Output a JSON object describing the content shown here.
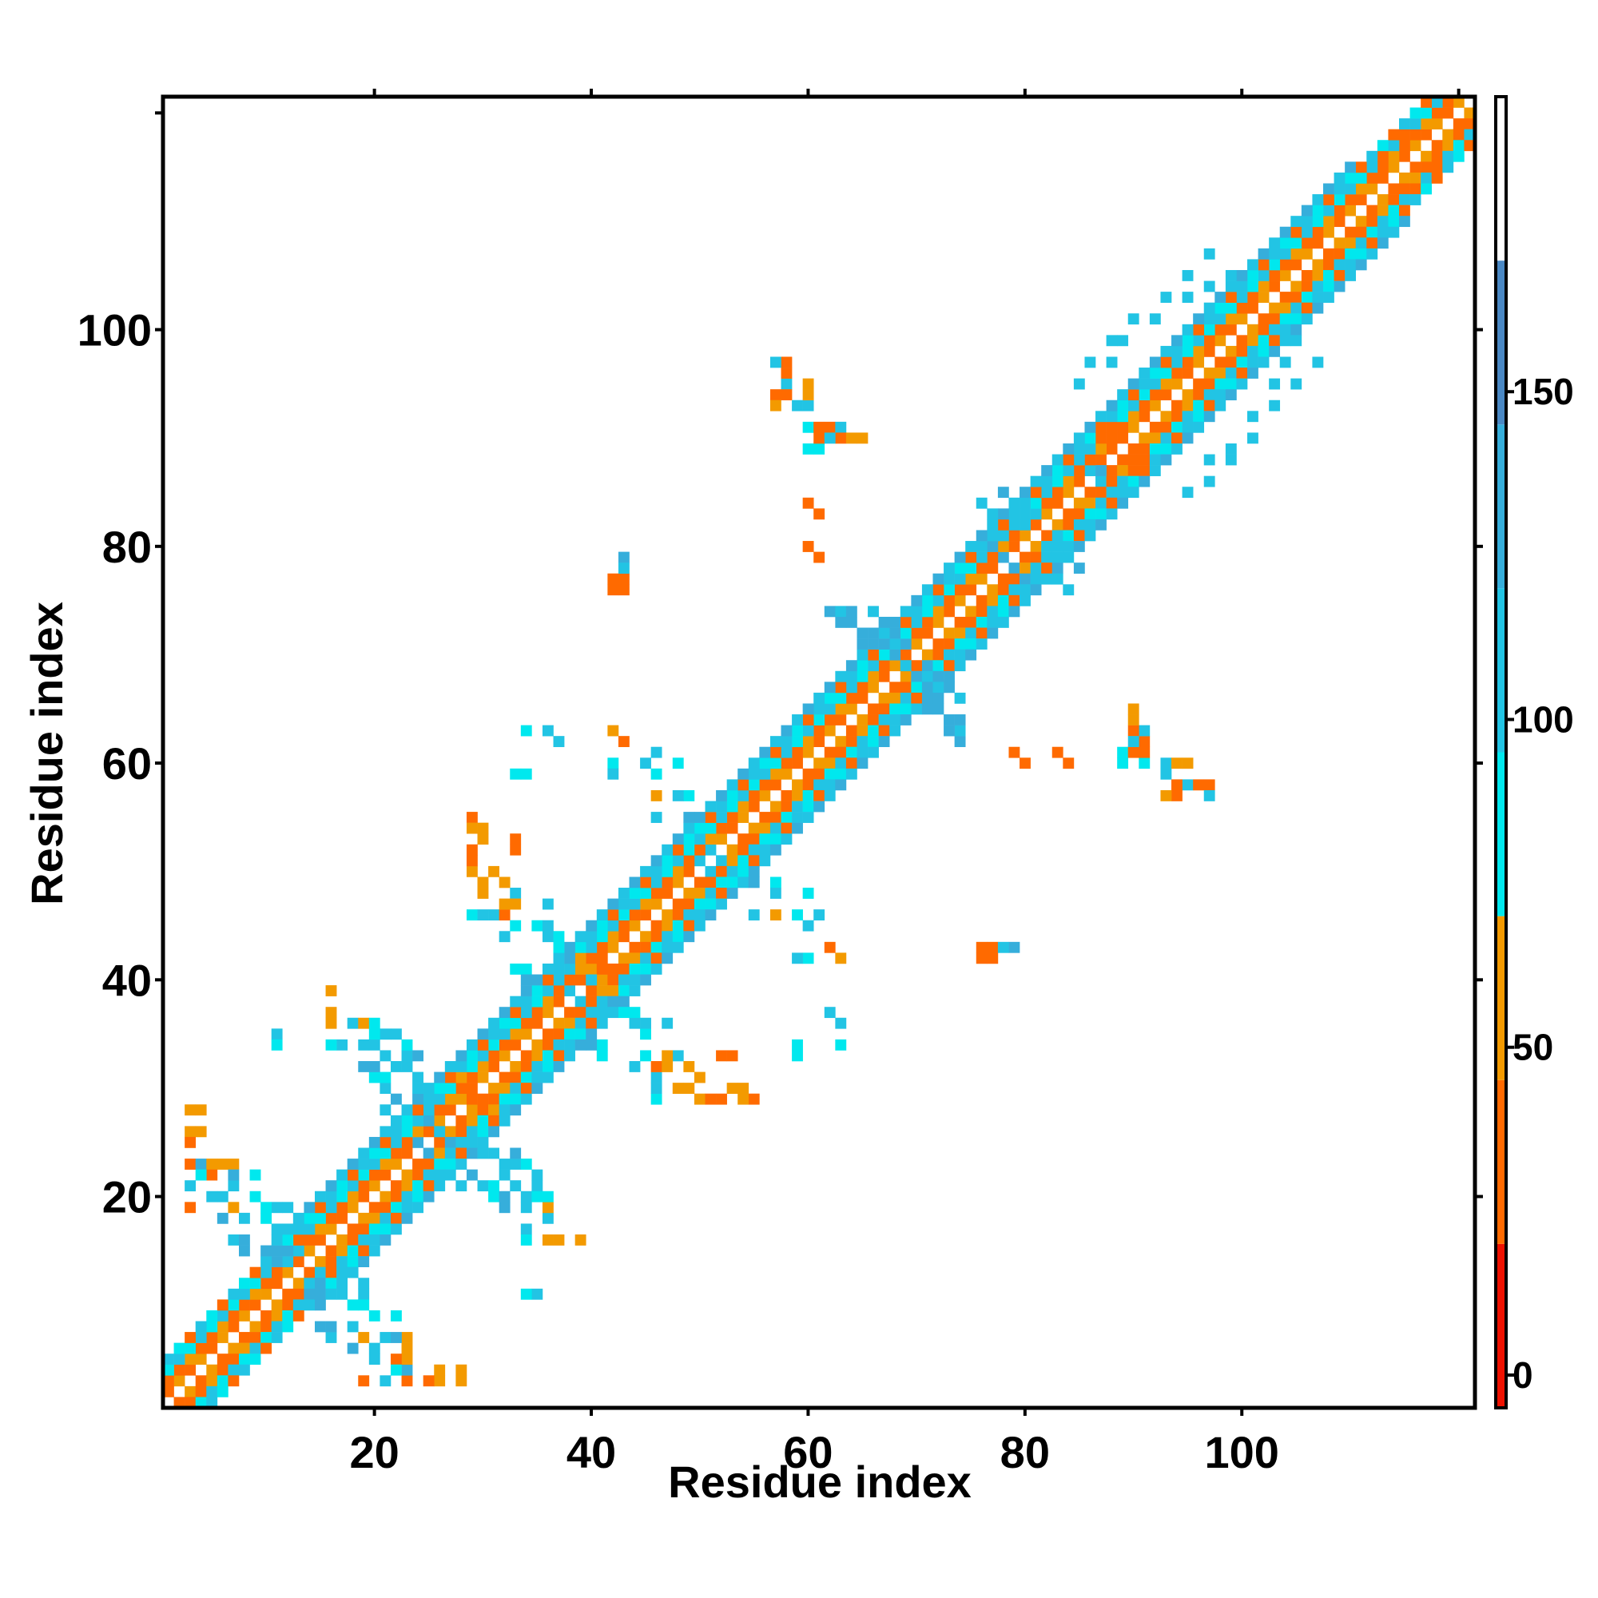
{
  "chart_data": {
    "type": "heatmap",
    "title": "",
    "xlabel": "Residue index",
    "ylabel": "Residue index",
    "xlim": [
      0.5,
      121.5
    ],
    "ylim": [
      0.5,
      121.5
    ],
    "x_ticks": [
      20,
      40,
      60,
      80,
      100
    ],
    "y_ticks": [
      20,
      40,
      60,
      80,
      100
    ],
    "grid": false,
    "colorbar": {
      "range": [
        -5,
        195
      ],
      "ticks": [
        0,
        50,
        100,
        150
      ],
      "bands": [
        {
          "from": -5,
          "to": 20,
          "color": "#ee1100"
        },
        {
          "from": 20,
          "to": 45,
          "color": "#ff6a00"
        },
        {
          "from": 45,
          "to": 70,
          "color": "#f39a00"
        },
        {
          "from": 70,
          "to": 95,
          "color": "#00e8ee"
        },
        {
          "from": 95,
          "to": 120,
          "color": "#22c4e4"
        },
        {
          "from": 120,
          "to": 145,
          "color": "#36aedb"
        },
        {
          "from": 145,
          "to": 170,
          "color": "#4a88c4"
        },
        {
          "from": 170,
          "to": 195,
          "color": "#ffffff"
        }
      ]
    },
    "n_residues": 121,
    "diagonal_bands": [
      {
        "from": 1,
        "to": 121,
        "offset": 1,
        "values": [
          30,
          55
        ]
      },
      {
        "from": 1,
        "to": 120,
        "offset": 2,
        "values": [
          30,
          20,
          55
        ]
      },
      {
        "from": 1,
        "to": 119,
        "offset": 3,
        "values": [
          85,
          100
        ]
      },
      {
        "from": 1,
        "to": 118,
        "offset": 4,
        "values": [
          85,
          30,
          110
        ]
      },
      {
        "from": 10,
        "to": 110,
        "offset": 5,
        "values": [
          110,
          140
        ]
      }
    ],
    "points": [
      [
        3,
        28,
        55
      ],
      [
        3,
        26,
        55
      ],
      [
        4,
        26,
        55
      ],
      [
        3,
        23,
        110
      ],
      [
        4,
        23,
        140
      ],
      [
        5,
        23,
        110
      ],
      [
        6,
        23,
        55
      ],
      [
        7,
        23,
        55
      ],
      [
        5,
        22,
        30
      ],
      [
        3,
        21,
        110
      ],
      [
        7,
        21,
        140
      ],
      [
        9,
        20,
        110
      ],
      [
        3,
        19,
        30
      ],
      [
        6,
        18,
        140
      ],
      [
        7,
        19,
        85
      ],
      [
        11,
        19,
        110
      ],
      [
        12,
        19,
        110
      ],
      [
        8,
        18,
        110
      ],
      [
        10,
        18,
        140
      ],
      [
        11,
        17,
        140
      ],
      [
        12,
        17,
        110
      ],
      [
        7,
        16,
        110
      ],
      [
        8,
        16,
        140
      ],
      [
        11,
        16,
        110
      ],
      [
        12,
        16,
        85
      ],
      [
        13,
        16,
        20
      ],
      [
        11,
        15,
        140
      ],
      [
        12,
        15,
        110
      ],
      [
        13,
        15,
        110
      ],
      [
        14,
        12,
        110
      ],
      [
        15,
        12,
        140
      ],
      [
        16,
        11,
        110
      ],
      [
        14,
        11,
        140
      ],
      [
        17,
        11,
        110
      ],
      [
        18,
        10,
        85
      ],
      [
        19,
        10,
        85
      ],
      [
        20,
        9,
        85
      ],
      [
        22,
        9,
        85
      ],
      [
        15,
        8,
        140
      ],
      [
        18,
        8,
        110
      ],
      [
        19,
        7,
        55
      ],
      [
        20,
        6,
        110
      ],
      [
        21,
        7,
        110
      ],
      [
        22,
        7,
        140
      ],
      [
        23,
        7,
        55
      ],
      [
        20,
        5,
        110
      ],
      [
        23,
        5,
        55
      ],
      [
        22,
        4,
        85
      ],
      [
        19,
        3,
        30
      ],
      [
        23,
        3,
        30
      ],
      [
        25,
        3,
        30
      ],
      [
        26,
        3,
        55
      ],
      [
        28,
        4,
        55
      ],
      [
        16,
        39,
        55
      ],
      [
        11,
        35,
        110
      ],
      [
        16,
        36,
        55
      ],
      [
        18,
        36,
        110
      ],
      [
        19,
        36,
        55
      ],
      [
        20,
        36,
        85
      ],
      [
        22,
        35,
        110
      ],
      [
        19,
        34,
        85
      ],
      [
        20,
        34,
        110
      ],
      [
        23,
        33,
        110
      ],
      [
        24,
        33,
        140
      ],
      [
        19,
        32,
        140
      ],
      [
        22,
        32,
        110
      ],
      [
        24,
        31,
        110
      ],
      [
        20,
        31,
        85
      ],
      [
        21,
        28,
        110
      ],
      [
        22,
        27,
        110
      ],
      [
        25,
        27,
        140
      ],
      [
        26,
        26,
        110
      ],
      [
        27,
        25,
        140
      ],
      [
        28,
        25,
        110
      ],
      [
        25,
        24,
        140
      ],
      [
        29,
        24,
        140
      ],
      [
        30,
        24,
        110
      ],
      [
        31,
        24,
        110
      ],
      [
        32,
        23,
        110
      ],
      [
        34,
        23,
        85
      ],
      [
        29,
        22,
        140
      ],
      [
        30,
        21,
        110
      ],
      [
        31,
        21,
        85
      ],
      [
        33,
        21,
        110
      ],
      [
        35,
        21,
        110
      ],
      [
        32,
        20,
        140
      ],
      [
        34,
        19,
        110
      ],
      [
        35,
        20,
        85
      ],
      [
        34,
        17,
        110
      ],
      [
        34,
        16,
        85
      ],
      [
        37,
        16,
        55
      ],
      [
        34,
        11,
        85
      ],
      [
        28,
        30,
        20
      ],
      [
        29,
        29,
        20
      ],
      [
        28,
        31,
        55
      ],
      [
        29,
        55,
        55
      ],
      [
        29,
        54,
        55
      ],
      [
        30,
        53,
        55
      ],
      [
        33,
        53,
        30
      ],
      [
        29,
        50,
        55
      ],
      [
        30,
        49,
        110
      ],
      [
        31,
        50,
        55
      ],
      [
        32,
        49,
        55
      ],
      [
        33,
        48,
        110
      ],
      [
        29,
        46,
        85
      ],
      [
        31,
        46,
        110
      ],
      [
        32,
        46,
        85
      ],
      [
        33,
        45,
        110
      ],
      [
        35,
        45,
        140
      ],
      [
        36,
        44,
        110
      ],
      [
        37,
        43,
        85
      ],
      [
        34,
        41,
        85
      ],
      [
        35,
        40,
        140
      ],
      [
        36,
        41,
        110
      ],
      [
        38,
        39,
        140
      ],
      [
        39,
        38,
        110
      ],
      [
        40,
        37,
        110
      ],
      [
        41,
        36,
        110
      ],
      [
        42,
        38,
        140
      ],
      [
        43,
        39,
        85
      ],
      [
        44,
        37,
        85
      ],
      [
        45,
        36,
        110
      ],
      [
        47,
        36,
        110
      ],
      [
        45,
        35,
        85
      ],
      [
        40,
        34,
        140
      ],
      [
        41,
        33,
        85
      ],
      [
        45,
        33,
        85
      ],
      [
        46,
        32,
        30
      ],
      [
        47,
        33,
        55
      ],
      [
        47,
        32,
        55
      ],
      [
        49,
        32,
        55
      ],
      [
        44,
        32,
        110
      ],
      [
        46,
        30,
        110
      ],
      [
        48,
        30,
        55
      ],
      [
        49,
        30,
        55
      ],
      [
        51,
        29,
        30
      ],
      [
        52,
        29,
        30
      ],
      [
        53,
        30,
        55
      ],
      [
        54,
        30,
        55
      ],
      [
        55,
        29,
        30
      ],
      [
        52,
        33,
        30
      ],
      [
        40,
        42,
        20
      ],
      [
        41,
        41,
        20
      ],
      [
        42,
        41,
        20
      ],
      [
        39,
        42,
        55
      ],
      [
        40,
        40,
        110
      ],
      [
        34,
        63,
        85
      ],
      [
        36,
        63,
        110
      ],
      [
        42,
        63,
        55
      ],
      [
        42,
        60,
        85
      ],
      [
        45,
        60,
        85
      ],
      [
        46,
        61,
        110
      ],
      [
        48,
        60,
        110
      ],
      [
        46,
        57,
        55
      ],
      [
        49,
        57,
        85
      ],
      [
        49,
        55,
        110
      ],
      [
        51,
        52,
        110
      ],
      [
        51,
        50,
        110
      ],
      [
        53,
        49,
        85
      ],
      [
        55,
        49,
        140
      ],
      [
        57,
        48,
        110
      ],
      [
        60,
        48,
        85
      ],
      [
        55,
        46,
        110
      ],
      [
        59,
        46,
        85
      ],
      [
        60,
        45,
        110
      ],
      [
        62,
        43,
        30
      ],
      [
        59,
        42,
        110
      ],
      [
        62,
        37,
        110
      ],
      [
        59,
        34,
        85
      ],
      [
        59,
        33,
        85
      ],
      [
        42,
        77,
        30
      ],
      [
        43,
        77,
        30
      ],
      [
        43,
        79,
        140
      ],
      [
        43,
        78,
        85
      ],
      [
        58,
        97,
        55
      ],
      [
        58,
        95,
        110
      ],
      [
        57,
        94,
        30
      ],
      [
        58,
        94,
        30
      ],
      [
        60,
        93,
        55
      ],
      [
        60,
        94,
        30
      ],
      [
        60,
        91,
        85
      ],
      [
        61,
        91,
        30
      ],
      [
        62,
        91,
        30
      ],
      [
        63,
        91,
        110
      ],
      [
        63,
        90,
        30
      ],
      [
        64,
        90,
        30
      ],
      [
        60,
        89,
        85
      ],
      [
        61,
        89,
        30
      ],
      [
        60,
        84,
        20
      ],
      [
        60,
        80,
        20
      ],
      [
        62,
        74,
        140
      ],
      [
        63,
        74,
        110
      ],
      [
        63,
        73,
        140
      ],
      [
        65,
        72,
        110
      ],
      [
        66,
        72,
        140
      ],
      [
        67,
        72,
        110
      ],
      [
        68,
        71,
        110
      ],
      [
        68,
        70,
        140
      ],
      [
        69,
        71,
        140
      ],
      [
        69,
        69,
        110
      ],
      [
        71,
        67,
        140
      ],
      [
        72,
        68,
        140
      ],
      [
        73,
        67,
        140
      ],
      [
        74,
        66,
        110
      ],
      [
        71,
        65,
        140
      ],
      [
        72,
        65,
        140
      ],
      [
        73,
        64,
        140
      ],
      [
        74,
        64,
        140
      ],
      [
        76,
        84,
        110
      ],
      [
        77,
        83,
        110
      ],
      [
        78,
        85,
        140
      ],
      [
        79,
        83,
        110
      ],
      [
        80,
        82,
        110
      ],
      [
        79,
        78,
        140
      ],
      [
        80,
        77,
        140
      ],
      [
        81,
        77,
        110
      ],
      [
        82,
        79,
        110
      ],
      [
        83,
        81,
        110
      ],
      [
        84,
        80,
        110
      ],
      [
        85,
        88,
        110
      ],
      [
        86,
        87,
        110
      ],
      [
        87,
        87,
        140
      ],
      [
        87,
        90,
        20
      ],
      [
        88,
        89,
        20
      ],
      [
        89,
        90,
        20
      ],
      [
        90,
        89,
        20
      ],
      [
        91,
        88,
        20
      ],
      [
        76,
        43,
        30
      ],
      [
        76,
        42,
        30
      ],
      [
        78,
        43,
        110
      ],
      [
        79,
        43,
        140
      ],
      [
        79,
        61,
        20
      ],
      [
        83,
        61,
        20
      ],
      [
        89,
        61,
        85
      ],
      [
        90,
        61,
        20
      ],
      [
        91,
        61,
        30
      ],
      [
        90,
        62,
        110
      ],
      [
        90,
        64,
        55
      ],
      [
        90,
        65,
        55
      ],
      [
        93,
        60,
        110
      ],
      [
        94,
        60,
        55
      ],
      [
        95,
        60,
        55
      ],
      [
        93,
        59,
        110
      ],
      [
        93,
        57,
        55
      ],
      [
        95,
        58,
        110
      ],
      [
        96,
        58,
        30
      ],
      [
        97,
        58,
        30
      ],
      [
        97,
        57,
        110
      ],
      [
        85,
        95,
        110
      ],
      [
        88,
        97,
        110
      ],
      [
        89,
        99,
        110
      ],
      [
        92,
        101,
        110
      ],
      [
        95,
        103,
        110
      ],
      [
        97,
        104,
        110
      ],
      [
        99,
        105,
        110
      ],
      [
        97,
        86,
        110
      ],
      [
        99,
        88,
        110
      ],
      [
        101,
        90,
        110
      ],
      [
        103,
        93,
        110
      ],
      [
        105,
        95,
        110
      ],
      [
        107,
        97,
        110
      ],
      [
        114,
        112,
        30
      ],
      [
        116,
        113,
        30
      ],
      [
        118,
        115,
        30
      ],
      [
        119,
        117,
        55
      ],
      [
        120,
        119,
        30
      ]
    ]
  }
}
